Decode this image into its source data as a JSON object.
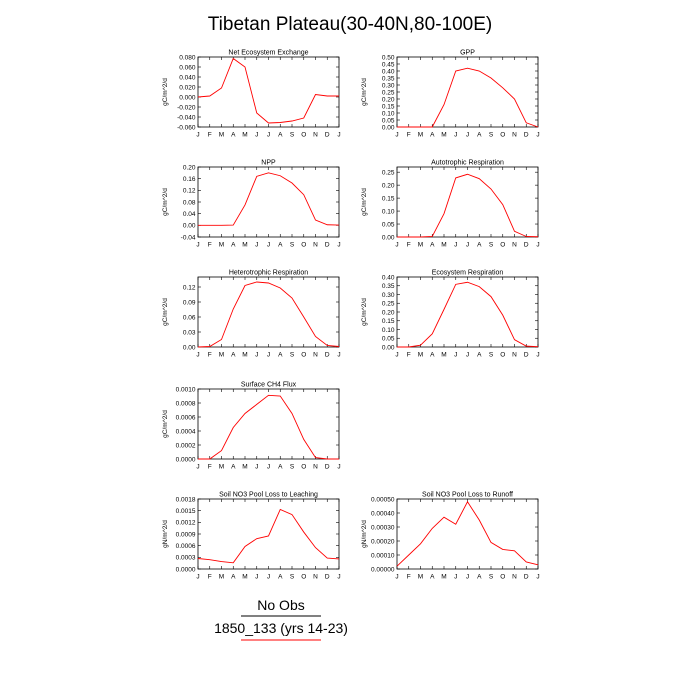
{
  "figure": {
    "title": "Tibetan Plateau(30-40N,80-100E)",
    "legend": [
      {
        "label": "No Obs",
        "color": "#000000"
      },
      {
        "label": "1850_133 (yrs 14-23)",
        "color": "#ff0000"
      }
    ]
  },
  "chart_data": [
    {
      "type": "line",
      "title": "Net Ecosystem Exchange",
      "ylabel": "gC/m^2/d",
      "categories": [
        "J",
        "F",
        "M",
        "A",
        "M",
        "J",
        "J",
        "A",
        "S",
        "O",
        "N",
        "D",
        "J"
      ],
      "ylim": [
        -0.06,
        0.08
      ],
      "yticks": [
        "-0.060",
        "-0.040",
        "-0.020",
        "0.000",
        "0.020",
        "0.040",
        "0.060",
        "0.080"
      ],
      "series": [
        {
          "color": "#ff0000",
          "values": [
            0.0,
            0.002,
            0.018,
            0.077,
            0.06,
            -0.032,
            -0.052,
            -0.051,
            -0.048,
            -0.042,
            0.005,
            0.002,
            0.002
          ]
        }
      ]
    },
    {
      "type": "line",
      "title": "GPP",
      "ylabel": "gC/m^2/d",
      "categories": [
        "J",
        "F",
        "M",
        "A",
        "M",
        "J",
        "J",
        "A",
        "S",
        "O",
        "N",
        "D",
        "J"
      ],
      "ylim": [
        0,
        0.5
      ],
      "yticks": [
        "0.00",
        "0.05",
        "0.10",
        "0.15",
        "0.20",
        "0.25",
        "0.30",
        "0.35",
        "0.40",
        "0.45",
        "0.50"
      ],
      "series": [
        {
          "color": "#ff0000",
          "values": [
            0.0,
            0.0,
            0.0,
            0.0,
            0.16,
            0.4,
            0.42,
            0.4,
            0.35,
            0.28,
            0.2,
            0.03,
            0.0
          ]
        }
      ]
    },
    {
      "type": "line",
      "title": "NPP",
      "ylabel": "gC/m^2/d",
      "categories": [
        "J",
        "F",
        "M",
        "A",
        "M",
        "J",
        "J",
        "A",
        "S",
        "O",
        "N",
        "D",
        "J"
      ],
      "ylim": [
        -0.04,
        0.2
      ],
      "yticks": [
        "-0.04",
        "0.00",
        "0.04",
        "0.08",
        "0.12",
        "0.16",
        "0.20"
      ],
      "series": [
        {
          "color": "#ff0000",
          "values": [
            0.0,
            0.0,
            0.0,
            0.001,
            0.07,
            0.168,
            0.18,
            0.17,
            0.145,
            0.105,
            0.018,
            0.002,
            0.001
          ]
        }
      ]
    },
    {
      "type": "line",
      "title": "Autotrophic Respiration",
      "ylabel": "gC/m^2/d",
      "categories": [
        "J",
        "F",
        "M",
        "A",
        "M",
        "J",
        "J",
        "A",
        "S",
        "O",
        "N",
        "D",
        "J"
      ],
      "ylim": [
        0,
        0.27
      ],
      "yticks": [
        "0.00",
        "0.05",
        "0.10",
        "0.15",
        "0.20",
        "0.25"
      ],
      "series": [
        {
          "color": "#ff0000",
          "values": [
            0.0,
            0.0,
            0.0,
            0.002,
            0.09,
            0.228,
            0.242,
            0.225,
            0.185,
            0.125,
            0.022,
            0.002,
            0.001
          ]
        }
      ]
    },
    {
      "type": "line",
      "title": "Heterotrophic Respiration",
      "ylabel": "gC/m^2/d",
      "categories": [
        "J",
        "F",
        "M",
        "A",
        "M",
        "J",
        "J",
        "A",
        "S",
        "O",
        "N",
        "D",
        "J"
      ],
      "ylim": [
        0,
        0.14
      ],
      "yticks": [
        "0.00",
        "0.03",
        "0.06",
        "0.09",
        "0.12"
      ],
      "series": [
        {
          "color": "#ff0000",
          "values": [
            0.0,
            0.001,
            0.015,
            0.076,
            0.123,
            0.13,
            0.128,
            0.118,
            0.098,
            0.06,
            0.021,
            0.003,
            0.001
          ]
        }
      ]
    },
    {
      "type": "line",
      "title": "Ecosystem Respiration",
      "ylabel": "gC/m^2/d",
      "categories": [
        "J",
        "F",
        "M",
        "A",
        "M",
        "J",
        "J",
        "A",
        "S",
        "O",
        "N",
        "D",
        "J"
      ],
      "ylim": [
        0,
        0.4
      ],
      "yticks": [
        "0.00",
        "0.05",
        "0.10",
        "0.15",
        "0.20",
        "0.25",
        "0.30",
        "0.35",
        "0.40"
      ],
      "series": [
        {
          "color": "#ff0000",
          "values": [
            0.0,
            0.0,
            0.01,
            0.075,
            0.215,
            0.358,
            0.37,
            0.345,
            0.288,
            0.182,
            0.042,
            0.005,
            0.002
          ]
        }
      ]
    },
    {
      "type": "line",
      "title": "Surface CH4 Flux",
      "ylabel": "gC/m^2/d",
      "categories": [
        "J",
        "F",
        "M",
        "A",
        "M",
        "J",
        "J",
        "A",
        "S",
        "O",
        "N",
        "D",
        "J"
      ],
      "ylim": [
        0,
        0.001
      ],
      "yticks": [
        "0.0000",
        "0.0002",
        "0.0004",
        "0.0006",
        "0.0008",
        "0.0010"
      ],
      "series": [
        {
          "color": "#ff0000",
          "values": [
            0.0,
            0.0,
            0.00012,
            0.00045,
            0.00065,
            0.00078,
            0.00091,
            0.0009,
            0.00065,
            0.00028,
            2e-05,
            0.0,
            0.0
          ]
        }
      ]
    },
    {
      "type": "line",
      "title": "Soil NO3 Pool Loss to Leaching",
      "ylabel": "gN/m^2/d",
      "categories": [
        "J",
        "F",
        "M",
        "A",
        "M",
        "J",
        "J",
        "A",
        "S",
        "O",
        "N",
        "D",
        "J"
      ],
      "ylim": [
        0,
        0.0018
      ],
      "yticks": [
        "0.0000",
        "0.0003",
        "0.0006",
        "0.0009",
        "0.0012",
        "0.0015",
        "0.0018"
      ],
      "series": [
        {
          "color": "#ff0000",
          "values": [
            0.00027,
            0.00024,
            0.00019,
            0.00016,
            0.00058,
            0.00078,
            0.00085,
            0.00153,
            0.0014,
            0.00095,
            0.00055,
            0.00028,
            0.00026
          ]
        }
      ]
    },
    {
      "type": "line",
      "title": "Soil NO3 Pool Loss to Runoff",
      "ylabel": "gN/m^2/d",
      "categories": [
        "J",
        "F",
        "M",
        "A",
        "M",
        "J",
        "J",
        "A",
        "S",
        "O",
        "N",
        "D",
        "J"
      ],
      "ylim": [
        0,
        0.0005
      ],
      "yticks": [
        "0.00000",
        "0.00010",
        "0.00020",
        "0.00030",
        "0.00040",
        "0.00050"
      ],
      "series": [
        {
          "color": "#ff0000",
          "values": [
            2e-05,
            0.0001,
            0.00018,
            0.00029,
            0.00037,
            0.00032,
            0.00048,
            0.00035,
            0.00019,
            0.00014,
            0.00013,
            5e-05,
            3e-05
          ]
        }
      ]
    }
  ]
}
